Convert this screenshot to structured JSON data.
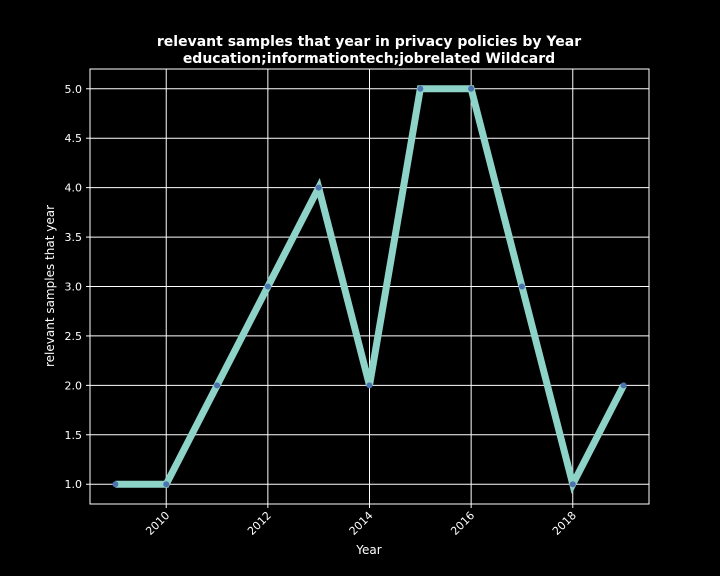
{
  "chart_data": {
    "type": "line",
    "title_line1": "relevant samples that year in privacy policies by Year",
    "title_line2": "education;informationtech;jobrelated Wildcard",
    "xlabel": "Year",
    "ylabel": "relevant samples that year",
    "x": [
      2009,
      2010,
      2011,
      2012,
      2013,
      2014,
      2015,
      2016,
      2017,
      2018,
      2019
    ],
    "series": [
      {
        "values": [
          1,
          1,
          2,
          3,
          4,
          2,
          5,
          5,
          3,
          1,
          2
        ]
      }
    ],
    "xlim": [
      2008.5,
      2019.5
    ],
    "ylim": [
      0.8,
      5.2
    ],
    "xticks": [
      2010,
      2012,
      2014,
      2016,
      2018
    ],
    "yticks": [
      "1.0",
      "1.5",
      "2.0",
      "2.5",
      "3.0",
      "3.5",
      "4.0",
      "4.5",
      "5.0"
    ],
    "grid": true,
    "colors": {
      "background": "#000000",
      "line": "#8dd3c7",
      "marker": "#4c72b0",
      "grid": "#ffffff",
      "text": "#ffffff"
    }
  }
}
